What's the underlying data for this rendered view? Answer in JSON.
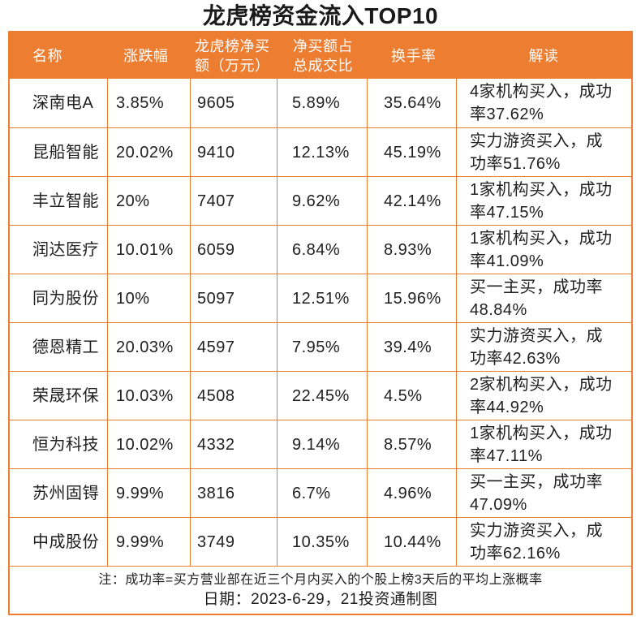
{
  "title": "龙虎榜资金流入TOP10",
  "colors": {
    "accent": "#ED7D31",
    "header_text": "#FFFFFF",
    "body_text": "#1F1F1F",
    "background": "#FFFFFF"
  },
  "chart_data": {
    "type": "table",
    "title": "龙虎榜资金流入TOP10",
    "columns": [
      "名称",
      "涨跌幅",
      "龙虎榜净买额（万元）",
      "净买额占总成交比",
      "换手率",
      "解读"
    ],
    "rows": [
      [
        "深南电A",
        "3.85%",
        "9605",
        "5.89%",
        "35.64%",
        "4家机构买入，成功率37.62%"
      ],
      [
        "昆船智能",
        "20.02%",
        "9410",
        "12.13%",
        "45.19%",
        "实力游资买入，成功率51.76%"
      ],
      [
        "丰立智能",
        "20%",
        "7407",
        "9.62%",
        "42.14%",
        "1家机构买入，成功率47.15%"
      ],
      [
        "润达医疗",
        "10.01%",
        "6059",
        "6.84%",
        "8.93%",
        "1家机构买入，成功率41.09%"
      ],
      [
        "同为股份",
        "10%",
        "5097",
        "12.51%",
        "15.96%",
        "买一主买，成功率48.84%"
      ],
      [
        "德恩精工",
        "20.03%",
        "4597",
        "7.95%",
        "39.4%",
        "实力游资买入，成功率42.63%"
      ],
      [
        "荣晟环保",
        "10.03%",
        "4508",
        "22.45%",
        "4.5%",
        "2家机构买入，成功率44.92%"
      ],
      [
        "恒为科技",
        "10.02%",
        "4332",
        "9.14%",
        "8.57%",
        "1家机构买入，成功率47.11%"
      ],
      [
        "苏州固锝",
        "9.99%",
        "3816",
        "6.7%",
        "4.96%",
        "买一主买，成功率47.09%"
      ],
      [
        "中成股份",
        "9.99%",
        "3749",
        "10.35%",
        "10.44%",
        "实力游资买入，成功率62.16%"
      ]
    ],
    "note": "注：成功率=买方营业部在近三个月内买入的个股上榜3天后的平均上涨概率",
    "date_line": "日期：2023-6-29，21投资通制图"
  }
}
